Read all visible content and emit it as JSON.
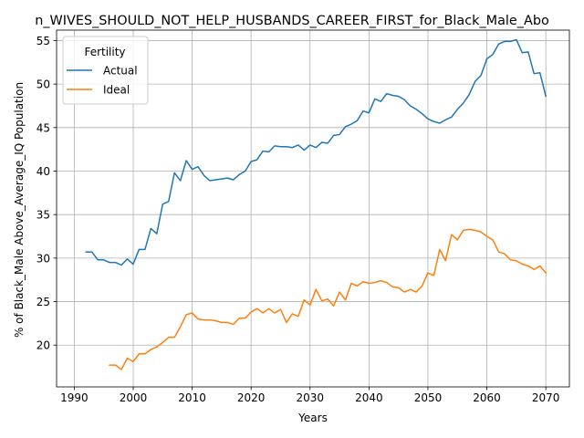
{
  "chart_data": {
    "type": "line",
    "title": "n_WIVES_SHOULD_NOT_HELP_HUSBANDS_CAREER_FIRST_for_Black_Male_Abo",
    "xlabel": "Years",
    "ylabel": "% of Black_Male Above_Average_IQ Population",
    "xlim": [
      1987,
      2074
    ],
    "ylim": [
      15.2,
      56.2
    ],
    "xticks": [
      1990,
      2000,
      2010,
      2020,
      2030,
      2040,
      2050,
      2060,
      2070
    ],
    "yticks": [
      20,
      25,
      30,
      35,
      40,
      45,
      50,
      55
    ],
    "grid": true,
    "legend": {
      "title": "Fertility",
      "placement": "top-left"
    },
    "series": [
      {
        "name": "Actual",
        "color": "#1f77b4",
        "x": [
          1992,
          1993,
          1994,
          1995,
          1996,
          1997,
          1998,
          1999,
          2000,
          2001,
          2002,
          2003,
          2004,
          2005,
          2006,
          2007,
          2008,
          2009,
          2010,
          2011,
          2012,
          2013,
          2014,
          2015,
          2016,
          2017,
          2018,
          2019,
          2020,
          2021,
          2022,
          2023,
          2024,
          2025,
          2026,
          2027,
          2028,
          2029,
          2030,
          2031,
          2032,
          2033,
          2034,
          2035,
          2036,
          2037,
          2038,
          2039,
          2040,
          2041,
          2042,
          2043,
          2044,
          2045,
          2046,
          2047,
          2048,
          2049,
          2050,
          2051,
          2052,
          2053,
          2054,
          2055,
          2056,
          2057,
          2058,
          2059,
          2060,
          2061,
          2062,
          2063,
          2064,
          2065,
          2066,
          2067,
          2068,
          2069,
          2070
        ],
        "y": [
          30.7,
          30.7,
          29.8,
          29.8,
          29.5,
          29.5,
          29.2,
          29.9,
          29.3,
          31.0,
          31.0,
          33.4,
          32.8,
          36.2,
          36.5,
          39.8,
          38.9,
          41.2,
          40.2,
          40.5,
          39.5,
          38.9,
          39.0,
          39.1,
          39.2,
          39.0,
          39.6,
          40.0,
          41.1,
          41.3,
          42.3,
          42.2,
          42.9,
          42.8,
          42.8,
          42.7,
          43.0,
          42.4,
          43.0,
          42.7,
          43.3,
          43.2,
          44.1,
          44.2,
          45.1,
          45.4,
          45.8,
          46.9,
          46.7,
          48.3,
          48.0,
          48.9,
          48.7,
          48.6,
          48.2,
          47.5,
          47.1,
          46.6,
          46.0,
          45.7,
          45.5,
          45.9,
          46.2,
          47.1,
          47.8,
          48.8,
          50.3,
          51.0,
          52.9,
          53.4,
          54.6,
          54.9,
          54.9,
          55.1,
          53.6,
          53.7,
          51.2,
          51.3,
          48.6
        ]
      },
      {
        "name": "Ideal",
        "color": "#ff7f0e",
        "x": [
          1996,
          1997,
          1998,
          1999,
          2000,
          2001,
          2002,
          2003,
          2004,
          2005,
          2006,
          2007,
          2008,
          2009,
          2010,
          2011,
          2012,
          2013,
          2014,
          2015,
          2016,
          2017,
          2018,
          2019,
          2020,
          2021,
          2022,
          2023,
          2024,
          2025,
          2026,
          2027,
          2028,
          2029,
          2030,
          2031,
          2032,
          2033,
          2034,
          2035,
          2036,
          2037,
          2038,
          2039,
          2040,
          2041,
          2042,
          2043,
          2044,
          2045,
          2046,
          2047,
          2048,
          2049,
          2050,
          2051,
          2052,
          2053,
          2054,
          2055,
          2056,
          2057,
          2058,
          2059,
          2060,
          2061,
          2062,
          2063,
          2064,
          2065,
          2066,
          2067,
          2068,
          2069,
          2070
        ],
        "y": [
          17.7,
          17.7,
          17.2,
          18.5,
          18.1,
          19.0,
          19.0,
          19.5,
          19.8,
          20.3,
          20.9,
          20.9,
          22.1,
          23.5,
          23.7,
          23.0,
          22.9,
          22.9,
          22.8,
          22.6,
          22.6,
          22.4,
          23.1,
          23.1,
          23.8,
          24.2,
          23.7,
          24.2,
          23.7,
          24.1,
          22.6,
          23.6,
          23.3,
          25.2,
          24.6,
          26.4,
          25.1,
          25.3,
          24.5,
          26.1,
          25.2,
          27.1,
          26.8,
          27.3,
          27.1,
          27.2,
          27.4,
          27.2,
          26.7,
          26.6,
          26.1,
          26.4,
          26.1,
          26.8,
          28.3,
          28.0,
          31.0,
          29.7,
          32.7,
          32.1,
          33.2,
          33.3,
          33.2,
          33.0,
          32.5,
          32.1,
          30.7,
          30.5,
          29.8,
          29.7,
          29.3,
          29.1,
          28.7,
          29.1,
          28.3
        ]
      }
    ]
  }
}
